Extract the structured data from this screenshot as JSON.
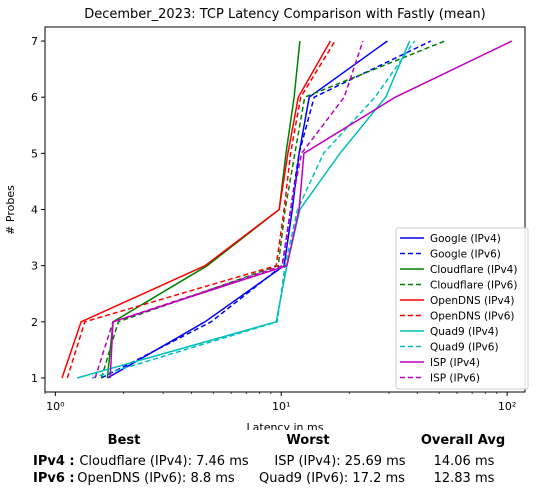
{
  "chart_data": {
    "type": "line",
    "title": "December_2023: TCP Latency Comparison with Fastly (mean)",
    "xlabel": "Latency in ms",
    "ylabel": "# Probes",
    "xscale": "log",
    "xlim": [
      0.9,
      120
    ],
    "ylim": [
      0.75,
      7.25
    ],
    "x_ticks": [
      {
        "value": 1,
        "label": "10⁰"
      },
      {
        "value": 10,
        "label": "10¹"
      },
      {
        "value": 100,
        "label": "10²"
      }
    ],
    "y_ticks": [
      1,
      2,
      3,
      4,
      5,
      6,
      7
    ],
    "grid": false,
    "legend_position": "lower-right",
    "series": [
      {
        "name": "Google (IPv4)",
        "color": "#0000ff",
        "dash": "solid",
        "points": [
          [
            1.7,
            1
          ],
          [
            4.6,
            2
          ],
          [
            10.3,
            3
          ],
          [
            11.2,
            4
          ],
          [
            12.0,
            5
          ],
          [
            13.3,
            6
          ],
          [
            29.5,
            7
          ]
        ]
      },
      {
        "name": "Google (IPv6)",
        "color": "#0000ff",
        "dash": "dashed",
        "points": [
          [
            1.6,
            1
          ],
          [
            4.9,
            2
          ],
          [
            10.1,
            3
          ],
          [
            11.0,
            4
          ],
          [
            12.0,
            5
          ],
          [
            14.0,
            6
          ],
          [
            46.0,
            7
          ]
        ]
      },
      {
        "name": "Cloudflare (IPv4)",
        "color": "#008000",
        "dash": "solid",
        "points": [
          [
            1.7,
            1
          ],
          [
            1.8,
            2
          ],
          [
            4.7,
            3
          ],
          [
            9.8,
            4
          ],
          [
            10.5,
            5
          ],
          [
            11.4,
            6
          ],
          [
            12.1,
            7
          ]
        ]
      },
      {
        "name": "Cloudflare (IPv6)",
        "color": "#008000",
        "dash": "dashed",
        "points": [
          [
            1.6,
            1
          ],
          [
            1.9,
            2
          ],
          [
            9.7,
            3
          ],
          [
            10.4,
            4
          ],
          [
            11.5,
            5
          ],
          [
            12.7,
            6
          ],
          [
            53.0,
            7
          ]
        ]
      },
      {
        "name": "OpenDNS (IPv4)",
        "color": "#ff0000",
        "dash": "solid",
        "points": [
          [
            1.07,
            1
          ],
          [
            1.3,
            2
          ],
          [
            4.6,
            3
          ],
          [
            9.8,
            4
          ],
          [
            10.7,
            5
          ],
          [
            11.9,
            6
          ],
          [
            16.5,
            7
          ]
        ]
      },
      {
        "name": "OpenDNS (IPv6)",
        "color": "#ff0000",
        "dash": "dashed",
        "points": [
          [
            1.13,
            1
          ],
          [
            1.35,
            2
          ],
          [
            9.5,
            3
          ],
          [
            10.3,
            4
          ],
          [
            11.0,
            5
          ],
          [
            12.2,
            6
          ],
          [
            17.3,
            7
          ]
        ]
      },
      {
        "name": "Quad9 (IPv4)",
        "color": "#00bfbf",
        "dash": "solid",
        "points": [
          [
            1.25,
            1
          ],
          [
            9.5,
            2
          ],
          [
            10.6,
            3
          ],
          [
            12.1,
            4
          ],
          [
            18.2,
            5
          ],
          [
            29.0,
            6
          ],
          [
            37.0,
            7
          ]
        ]
      },
      {
        "name": "Quad9 (IPv6)",
        "color": "#00bfbf",
        "dash": "dashed",
        "points": [
          [
            1.45,
            1
          ],
          [
            9.6,
            2
          ],
          [
            10.4,
            3
          ],
          [
            11.8,
            4
          ],
          [
            15.4,
            5
          ],
          [
            26.0,
            6
          ],
          [
            39.0,
            7
          ]
        ]
      },
      {
        "name": "ISP (IPv4)",
        "color": "#bf00bf",
        "dash": "solid",
        "points": [
          [
            1.75,
            1
          ],
          [
            1.8,
            2
          ],
          [
            10.6,
            3
          ],
          [
            12.0,
            4
          ],
          [
            12.6,
            5
          ],
          [
            32.0,
            6
          ],
          [
            105.0,
            7
          ]
        ]
      },
      {
        "name": "ISP (IPv6)",
        "color": "#bf00bf",
        "dash": "dashed",
        "points": [
          [
            1.5,
            1
          ],
          [
            1.8,
            2
          ],
          [
            10.1,
            3
          ],
          [
            11.0,
            4
          ],
          [
            12.3,
            5
          ],
          [
            19.0,
            6
          ],
          [
            23.0,
            7
          ]
        ]
      }
    ]
  },
  "summary": {
    "headers": {
      "best": "Best",
      "worst": "Worst",
      "overall": "Overall Avg"
    },
    "rows": [
      {
        "label": "IPv4 :",
        "best": "Cloudflare (IPv4): 7.46 ms",
        "worst": "ISP (IPv4): 25.69 ms",
        "overall": "14.06 ms"
      },
      {
        "label": "IPv6 :",
        "best": "OpenDNS (IPv6): 8.8 ms",
        "worst": "Quad9 (IPv6): 17.2 ms",
        "overall": "12.83 ms"
      }
    ]
  }
}
